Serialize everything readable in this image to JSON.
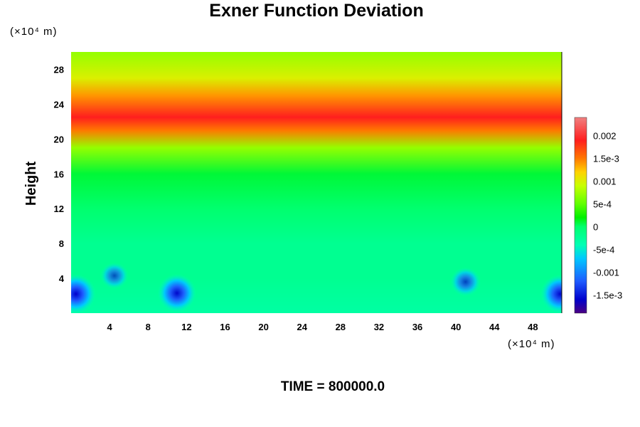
{
  "chart_data": {
    "type": "heatmap",
    "title": "Exner Function Deviation",
    "ylabel": "Height",
    "xlabel": "",
    "x_unit": "(×10⁴ m)",
    "y_unit": "(×10⁴ m)",
    "xlim": [
      0,
      51
    ],
    "ylim": [
      0,
      30
    ],
    "x_ticks": [
      4,
      8,
      12,
      16,
      20,
      24,
      28,
      32,
      36,
      40,
      44,
      48
    ],
    "y_ticks": [
      4,
      8,
      12,
      16,
      20,
      24,
      28
    ],
    "colorbar": {
      "range": [
        -0.0019,
        0.0024
      ],
      "tick_values": [
        0.002,
        0.0015,
        0.001,
        0.0005,
        0,
        -0.0005,
        -0.001,
        -0.0015
      ],
      "tick_labels": [
        "0.002",
        "1.5e-3",
        "0.001",
        "5e-4",
        "0",
        "-5e-4",
        "-0.001",
        "-1.5e-3"
      ]
    },
    "vertical_profile": [
      {
        "y": 0,
        "v": -0.0003
      },
      {
        "y": 4,
        "v": -0.0002
      },
      {
        "y": 8,
        "v": -0.0002
      },
      {
        "y": 12,
        "v": 0.0
      },
      {
        "y": 16,
        "v": 0.0001
      },
      {
        "y": 19,
        "v": 0.0007
      },
      {
        "y": 21,
        "v": 0.0015
      },
      {
        "y": 22.5,
        "v": 0.0019
      },
      {
        "y": 25,
        "v": 0.0014
      },
      {
        "y": 27,
        "v": 0.001
      },
      {
        "y": 30,
        "v": 0.0007
      }
    ],
    "local_minima": [
      {
        "x": 0.5,
        "y": 2.2,
        "v": -0.0017
      },
      {
        "x": 11,
        "y": 2.3,
        "v": -0.0016
      },
      {
        "x": 41,
        "y": 3.6,
        "v": -0.0009
      },
      {
        "x": 50.8,
        "y": 2.2,
        "v": -0.0016
      },
      {
        "x": 4.5,
        "y": 4.3,
        "v": -0.0007
      }
    ],
    "time_label": "TIME = 800000.0"
  }
}
